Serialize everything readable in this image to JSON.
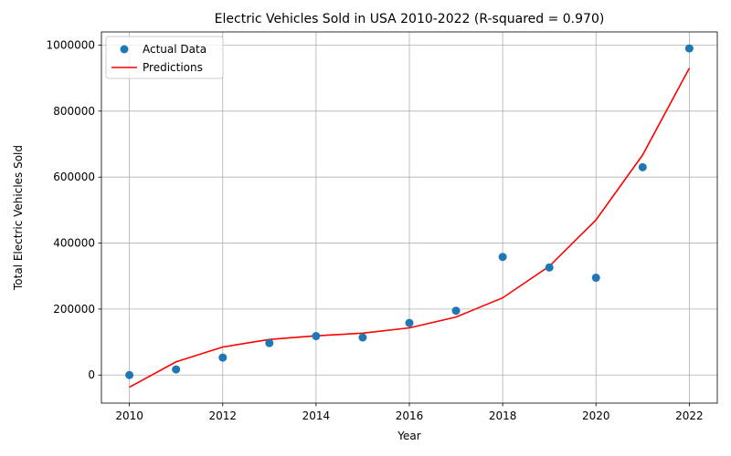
{
  "chart_data": {
    "type": "scatter",
    "title": "Electric Vehicles Sold in USA 2010-2022 (R-squared = 0.970)",
    "xlabel": "Year",
    "ylabel": "Total Electric Vehicles Sold",
    "xlim": [
      2009.4,
      2022.6
    ],
    "ylim": [
      -85000,
      1040000
    ],
    "xticks": [
      2010,
      2012,
      2014,
      2016,
      2018,
      2020,
      2022
    ],
    "yticks": [
      0,
      200000,
      400000,
      600000,
      800000,
      1000000
    ],
    "grid": true,
    "legend_position": "top-left",
    "colors": {
      "actual": "#1f77b4",
      "predictions": "#ff0000",
      "grid": "#b0b0b0"
    },
    "series": [
      {
        "name": "Actual Data",
        "kind": "scatter",
        "x": [
          2010,
          2011,
          2012,
          2013,
          2014,
          2015,
          2016,
          2017,
          2018,
          2019,
          2020,
          2021,
          2022
        ],
        "values": [
          0,
          17000,
          53000,
          97000,
          118000,
          114000,
          158000,
          195000,
          358000,
          326000,
          295000,
          630000,
          990000
        ]
      },
      {
        "name": "Predictions",
        "kind": "line",
        "x": [
          2010,
          2011,
          2012,
          2013,
          2014,
          2015,
          2016,
          2017,
          2018,
          2019,
          2020,
          2021,
          2022
        ],
        "values": [
          -37000,
          40000,
          85000,
          108000,
          119000,
          127000,
          143000,
          176000,
          234000,
          330000,
          470000,
          667000,
          930000
        ]
      }
    ]
  }
}
